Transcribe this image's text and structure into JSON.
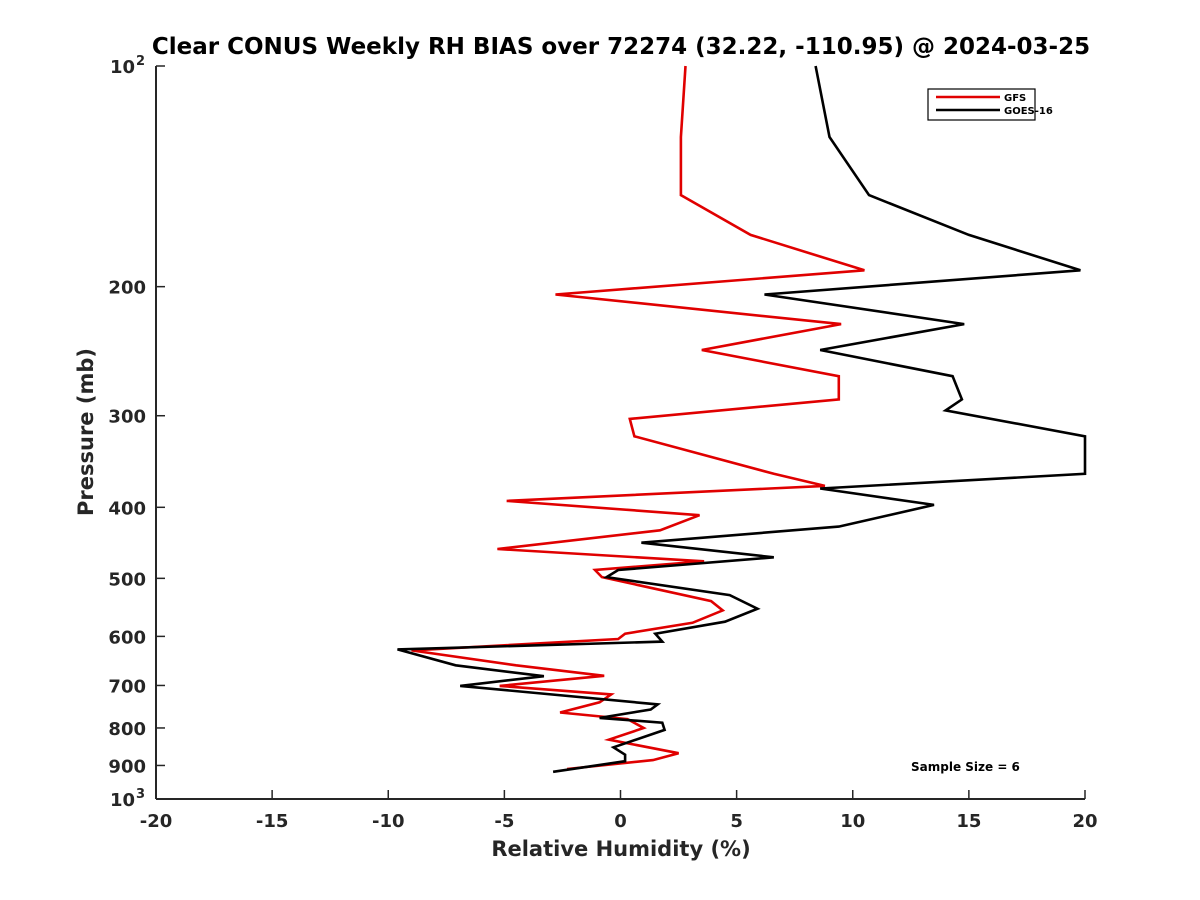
{
  "chart_data": {
    "type": "line",
    "title": "Clear CONUS Weekly RH BIAS over 72274 (32.22, -110.95) @ 2024-03-25",
    "xlabel": "Relative Humidity (%)",
    "ylabel": "Pressure (mb)",
    "xlim": [
      -20,
      20
    ],
    "ylim": [
      100,
      1000
    ],
    "y_scale": "log",
    "y_reversed": true,
    "xticks": [
      "-20",
      "-15",
      "-10",
      "-5",
      "0",
      "5",
      "10",
      "15",
      "20"
    ],
    "yticks": [
      {
        "value": 100,
        "label": "10",
        "sup": "2"
      },
      {
        "value": 200,
        "label": "200",
        "sup": ""
      },
      {
        "value": 300,
        "label": "300",
        "sup": ""
      },
      {
        "value": 400,
        "label": "400",
        "sup": ""
      },
      {
        "value": 500,
        "label": "500",
        "sup": ""
      },
      {
        "value": 600,
        "label": "600",
        "sup": ""
      },
      {
        "value": 700,
        "label": "700",
        "sup": ""
      },
      {
        "value": 800,
        "label": "800",
        "sup": ""
      },
      {
        "value": 900,
        "label": "900",
        "sup": ""
      },
      {
        "value": 1000,
        "label": "10",
        "sup": "3"
      }
    ],
    "grid": false,
    "legend_position": "top-right",
    "series": [
      {
        "name": "GFS",
        "color": "#e00000",
        "points": [
          [
            2.8,
            100
          ],
          [
            2.6,
            125
          ],
          [
            2.6,
            150
          ],
          [
            5.6,
            170
          ],
          [
            10.5,
            190
          ],
          [
            -2.8,
            205
          ],
          [
            9.5,
            225
          ],
          [
            3.5,
            244
          ],
          [
            9.4,
            265
          ],
          [
            9.4,
            285
          ],
          [
            0.4,
            303
          ],
          [
            0.6,
            320
          ],
          [
            6.6,
            360
          ],
          [
            8.8,
            374
          ],
          [
            -4.9,
            392
          ],
          [
            3.4,
            410
          ],
          [
            1.7,
            430
          ],
          [
            -5.3,
            456
          ],
          [
            3.6,
            474
          ],
          [
            -1.1,
            487
          ],
          [
            -0.8,
            498
          ],
          [
            3.9,
            537
          ],
          [
            4.4,
            553
          ],
          [
            3.1,
            575
          ],
          [
            0.2,
            595
          ],
          [
            -0.1,
            605
          ],
          [
            -9.0,
            627
          ],
          [
            -4.5,
            657
          ],
          [
            -0.7,
            679
          ],
          [
            -5.2,
            701
          ],
          [
            -0.4,
            720
          ],
          [
            -0.9,
            738
          ],
          [
            -2.6,
            762
          ],
          [
            0.3,
            778
          ],
          [
            1.0,
            800
          ],
          [
            -0.5,
            830
          ],
          [
            2.5,
            866
          ],
          [
            1.4,
            885
          ],
          [
            -2.3,
            910
          ]
        ]
      },
      {
        "name": "GOES-16",
        "color": "#000000",
        "points": [
          [
            8.4,
            100
          ],
          [
            9.0,
            125
          ],
          [
            10.7,
            150
          ],
          [
            15.0,
            170
          ],
          [
            19.8,
            190
          ],
          [
            6.2,
            205
          ],
          [
            14.8,
            225
          ],
          [
            8.6,
            244
          ],
          [
            14.3,
            265
          ],
          [
            14.7,
            285
          ],
          [
            14.0,
            295
          ],
          [
            20.0,
            320
          ],
          [
            20.0,
            360
          ],
          [
            8.6,
            377
          ],
          [
            13.5,
            397
          ],
          [
            9.4,
            425
          ],
          [
            0.9,
            447
          ],
          [
            6.6,
            468
          ],
          [
            -0.1,
            487
          ],
          [
            -0.6,
            498
          ],
          [
            4.7,
            527
          ],
          [
            5.9,
            550
          ],
          [
            4.5,
            573
          ],
          [
            1.5,
            595
          ],
          [
            1.8,
            610
          ],
          [
            -9.6,
            625
          ],
          [
            -7.1,
            657
          ],
          [
            -3.3,
            680
          ],
          [
            -6.9,
            701
          ],
          [
            1.6,
            743
          ],
          [
            1.3,
            755
          ],
          [
            -0.9,
            775
          ],
          [
            1.8,
            787
          ],
          [
            1.9,
            805
          ],
          [
            -0.3,
            850
          ],
          [
            0.2,
            870
          ],
          [
            0.2,
            888
          ],
          [
            -2.9,
            918
          ]
        ]
      }
    ],
    "annotation": "Sample Size = 6"
  }
}
